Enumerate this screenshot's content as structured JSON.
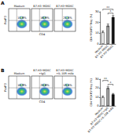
{
  "chart_data": [
    {
      "type": "bar",
      "ylabel": "CD4⁺FOXP3⁺Treg (%)",
      "categories": [
        "Medium",
        "B7-H3⁻MDSC",
        "B7-H3⁺MDSC"
      ],
      "values": [
        11,
        17,
        25
      ],
      "errors": [
        1,
        1.5,
        1.5
      ],
      "colors": [
        "#ffffff",
        "#a6a6a6",
        "#111111"
      ],
      "ylim": [
        0,
        30
      ],
      "yticks": [
        0,
        10,
        20,
        30
      ],
      "grid": false,
      "annotations": [
        {
          "text": "**",
          "between": [
            "Medium",
            "B7-H3⁺MDSC"
          ]
        },
        {
          "text": "*",
          "between": [
            "B7-H3⁻MDSC",
            "B7-H3⁺MDSC"
          ]
        }
      ]
    },
    {
      "type": "bar",
      "ylabel": "CD4⁺FOXP3⁺Treg (%)",
      "categories": [
        "Medium",
        "B7-H3⁺MDSC+IgG",
        "B7-H3⁺MDSC+IL-10R mAb"
      ],
      "values": [
        10,
        20,
        13
      ],
      "errors": [
        1,
        1.5,
        1
      ],
      "colors": [
        "#ffffff",
        "#a6a6a6",
        "#111111"
      ],
      "ylim": [
        0,
        30
      ],
      "yticks": [
        0,
        10,
        20,
        30
      ],
      "grid": false,
      "annotations": [
        {
          "text": "**",
          "between": [
            "Medium",
            "B7-H3⁺MDSC+IgG"
          ]
        },
        {
          "text": "*",
          "between": [
            "B7-H3⁺MDSC+IgG",
            "B7-H3⁺MDSC+IL-10R mAb"
          ]
        }
      ]
    }
  ],
  "flow_panels": [
    {
      "panel": "A",
      "ylabel": "FoxP3",
      "xlabel": "CD4",
      "plots": [
        {
          "title": "Medium",
          "percent": "11.8%"
        },
        {
          "title": "B7-H3⁻MDSC",
          "percent": "16.9%"
        },
        {
          "title": "B7-H3⁺MDSC",
          "percent": "21.5%"
        }
      ]
    },
    {
      "panel": "B",
      "ylabel": "FoxP3",
      "xlabel": "CD4",
      "plots": [
        {
          "title": "Medium",
          "percent": "10.3%"
        },
        {
          "title": "B7-H3⁺MDSC\n+IgG",
          "percent": "20.8%"
        },
        {
          "title": "B7-H3⁺MDSC\n+IL-10R mAb",
          "percent": "13.5%"
        }
      ]
    }
  ]
}
